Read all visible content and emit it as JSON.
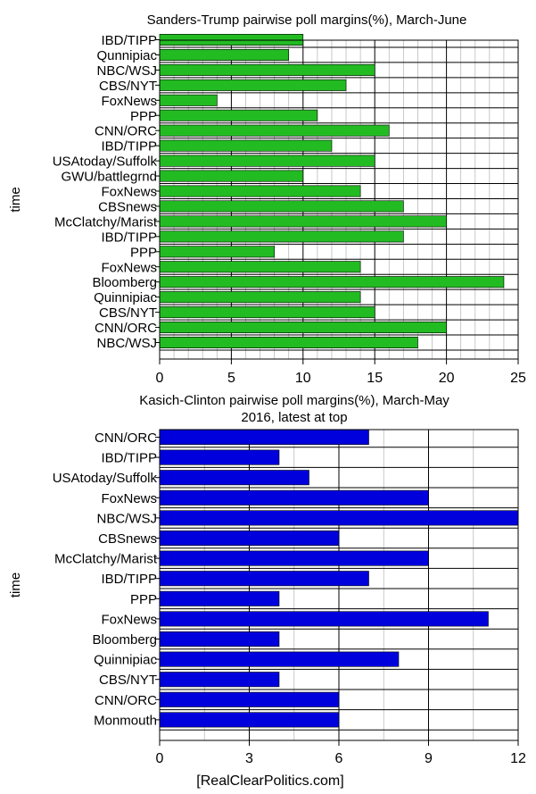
{
  "chart_data": [
    {
      "type": "bar",
      "orientation": "horizontal",
      "title": "Sanders-Trump pairwise poll margins(%), March-June",
      "xlabel": "",
      "ylabel": "time",
      "xlim": [
        0,
        25
      ],
      "xticks": [
        0,
        5,
        10,
        15,
        20,
        25
      ],
      "grid": true,
      "bar_color": "#22bb22",
      "categories": [
        "IBD/TIPP",
        "Qunnipiac",
        "NBC/WSJ",
        "CBS/NYT",
        "FoxNews",
        "PPP",
        "CNN/ORC",
        "IBD/TIPP",
        "USAtoday/Suffolk",
        "GWU/battlegrnd",
        "FoxNews",
        "CBSnews",
        "McClatchy/Marist",
        "IBD/TIPP",
        "PPP",
        "FoxNews",
        "Bloomberg",
        "Quinnipiac",
        "CBS/NYT",
        "CNN/ORC",
        "NBC/WSJ"
      ],
      "values": [
        10,
        9,
        15,
        13,
        4,
        11,
        16,
        12,
        15,
        10,
        14,
        17,
        20,
        17,
        8,
        14,
        24,
        14,
        15,
        20,
        18
      ]
    },
    {
      "type": "bar",
      "orientation": "horizontal",
      "title": "Kasich-Clinton pairwise poll margins(%), March-May 2016, latest at top",
      "xlabel": "[RealClearPolitics.com]",
      "ylabel": "time",
      "xlim": [
        0,
        12
      ],
      "xticks": [
        0,
        3,
        6,
        9,
        12
      ],
      "grid": true,
      "bar_color": "#0000dd",
      "categories": [
        "CNN/ORC",
        "IBD/TIPP",
        "USAtoday/Suffolk",
        "FoxNews",
        "NBC/WSJ",
        "CBSnews",
        "McClatchy/Marist",
        "IBD/TIPP",
        "PPP",
        "FoxNews",
        "Bloomberg",
        "Quinnipiac",
        "CBS/NYT",
        "CNN/ORC",
        "Monmouth"
      ],
      "values": [
        7,
        4,
        5,
        9,
        12,
        6,
        9,
        7,
        4,
        11,
        4,
        8,
        4,
        6,
        6
      ]
    }
  ]
}
